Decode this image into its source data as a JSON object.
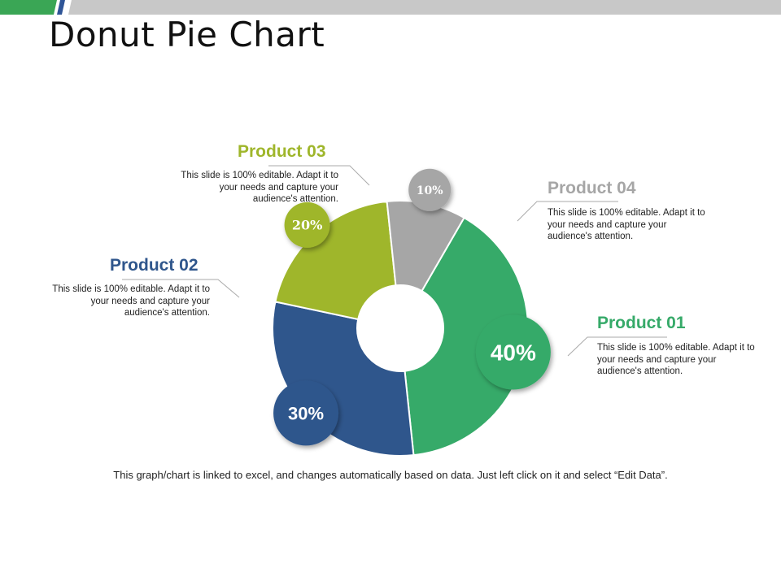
{
  "title": "Donut Pie Chart",
  "footnote": "This graph/chart is linked to excel, and changes automatically based on data. Just left click on it and select “Edit Data”.",
  "colors": {
    "product01": "#36aa69",
    "product02": "#2f568c",
    "product03": "#9fb62b",
    "product04": "#a6a6a6",
    "top_bar_green": "#3aa655",
    "top_bar_blue": "#2f5597",
    "top_bar_gray": "#c8c8c8"
  },
  "products": {
    "p01": {
      "name": "Product 01",
      "desc": "This slide is 100% editable. Adapt it to your needs and capture your audience's attention.",
      "label": "40%"
    },
    "p02": {
      "name": "Product 02",
      "desc": "This slide is 100% editable. Adapt it to your needs and capture your audience's attention.",
      "label": "30%"
    },
    "p03": {
      "name": "Product 03",
      "desc": "This slide is 100% editable. Adapt it to your needs and capture your audience's attention.",
      "label": "20%"
    },
    "p04": {
      "name": "Product 04",
      "desc": "This slide is 100% editable. Adapt it to your needs and capture your audience's attention.",
      "label": "10%"
    }
  },
  "chart_data": {
    "type": "pie",
    "categories": [
      "Product 01",
      "Product 02",
      "Product 03",
      "Product 04"
    ],
    "values": [
      40,
      30,
      20,
      10
    ],
    "labels": [
      "40%",
      "30%",
      "20%",
      "10%"
    ],
    "colors": [
      "#36aa69",
      "#2f568c",
      "#9fb62b",
      "#a6a6a6"
    ],
    "donut": true
  }
}
